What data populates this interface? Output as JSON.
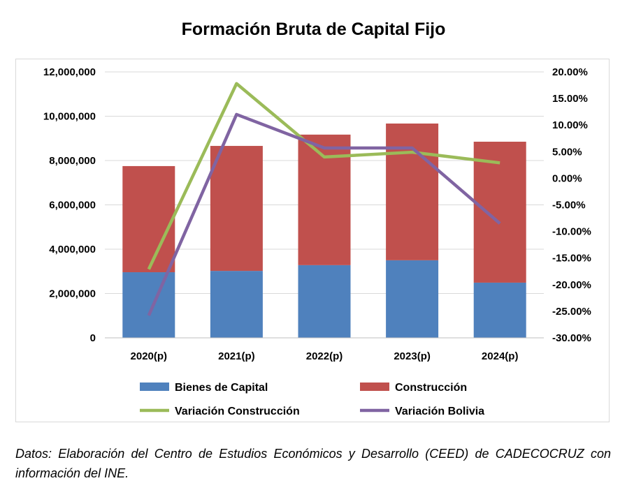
{
  "chart_data": {
    "type": "bar",
    "title": "Formación Bruta de Capital Fijo",
    "categories": [
      "2020(p)",
      "2021(p)",
      "2022(p)",
      "2023(p)",
      "2024(p)"
    ],
    "series": [
      {
        "name": "Bienes de Capital",
        "type": "stacked-bar",
        "axis": "left",
        "color": "#4f81bd",
        "values": [
          2960000,
          3020000,
          3280000,
          3500000,
          2490000
        ]
      },
      {
        "name": "Construcción",
        "type": "stacked-bar",
        "axis": "left",
        "color": "#c0504d",
        "values": [
          4790000,
          5640000,
          5890000,
          6170000,
          6360000
        ]
      },
      {
        "name": "Variación Construcción",
        "type": "line",
        "axis": "right",
        "color": "#9bbb59",
        "values": [
          -17.1,
          17.8,
          4.0,
          4.9,
          2.9
        ]
      },
      {
        "name": "Variación Bolivia",
        "type": "line",
        "axis": "right",
        "color": "#8064a2",
        "values": [
          -25.8,
          12.0,
          5.7,
          5.7,
          -8.5
        ]
      }
    ],
    "left_axis": {
      "ylim": [
        0,
        12000000
      ],
      "ticks": [
        "0",
        "2,000,000",
        "4,000,000",
        "6,000,000",
        "8,000,000",
        "10,000,000",
        "12,000,000"
      ]
    },
    "right_axis": {
      "ylim": [
        -30,
        20
      ],
      "ticks": [
        "-30.00%",
        "-25.00%",
        "-20.00%",
        "-15.00%",
        "-10.00%",
        "-5.00%",
        "0.00%",
        "5.00%",
        "10.00%",
        "15.00%",
        "20.00%"
      ]
    },
    "grid": true,
    "legend": "bottom"
  },
  "note": "Datos: Elaboración del Centro de Estudios Económicos y Desarrollo (CEED) de CADECOCRUZ con información del INE."
}
